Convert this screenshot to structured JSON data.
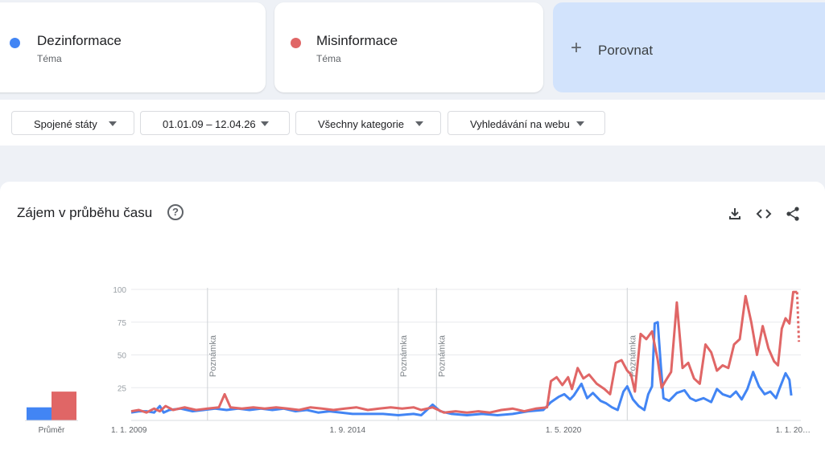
{
  "terms": [
    {
      "name": "Dezinformace",
      "type": "Téma",
      "color": "#4285f4"
    },
    {
      "name": "Misinformace",
      "type": "Téma",
      "color": "#e06666"
    }
  ],
  "compare": {
    "icon": "plus-icon",
    "label": "Porovnat"
  },
  "filters": {
    "region": "Spojené státy",
    "date_range": "01.01.09 – 12.04.26",
    "category": "Všechny kategorie",
    "search_type": "Vyhledávání na webu"
  },
  "chart_section": {
    "title": "Zájem v průběhu času",
    "icons": [
      "help-icon",
      "download-icon",
      "embed-code-icon",
      "share-icon"
    ]
  },
  "chart_data": {
    "type": "line",
    "ylim": [
      0,
      100
    ],
    "yticks": [
      "100",
      "75",
      "50",
      "25"
    ],
    "xticks": [
      {
        "label": "1. 1. 2009",
        "year": 2009.0
      },
      {
        "label": "1. 9. 2014",
        "year": 2014.67
      },
      {
        "label": "1. 5. 2020",
        "year": 2020.33
      },
      {
        "label": "1. 1. 20…",
        "year": 2026.0
      }
    ],
    "annotations": [
      {
        "label": "Poznámka",
        "year": 2011.0
      },
      {
        "label": "Poznámka",
        "year": 2016.0
      },
      {
        "label": "Poznámka",
        "year": 2017.0
      },
      {
        "label": "Poznámka",
        "year": 2022.0
      }
    ],
    "average_label": "Průměr",
    "averages": [
      {
        "name": "Dezinformace",
        "value": 10
      },
      {
        "name": "Misinformace",
        "value": 22
      }
    ],
    "series": [
      {
        "name": "Dezinformace",
        "color": "#4285f4",
        "points": [
          [
            2009.0,
            6
          ],
          [
            2009.2,
            7
          ],
          [
            2009.4,
            7
          ],
          [
            2009.6,
            6
          ],
          [
            2009.75,
            11
          ],
          [
            2009.85,
            6
          ],
          [
            2010.0,
            8
          ],
          [
            2010.3,
            9
          ],
          [
            2010.6,
            7
          ],
          [
            2010.9,
            8
          ],
          [
            2011.2,
            9
          ],
          [
            2011.5,
            8
          ],
          [
            2011.8,
            9
          ],
          [
            2012.1,
            8
          ],
          [
            2012.4,
            9
          ],
          [
            2012.7,
            8
          ],
          [
            2013.0,
            9
          ],
          [
            2013.3,
            7
          ],
          [
            2013.6,
            8
          ],
          [
            2013.9,
            6
          ],
          [
            2014.2,
            7
          ],
          [
            2014.5,
            6
          ],
          [
            2014.8,
            5
          ],
          [
            2015.2,
            5
          ],
          [
            2015.6,
            5
          ],
          [
            2016.0,
            4
          ],
          [
            2016.4,
            5
          ],
          [
            2016.6,
            4
          ],
          [
            2016.9,
            12
          ],
          [
            2017.1,
            7
          ],
          [
            2017.4,
            5
          ],
          [
            2017.8,
            4
          ],
          [
            2018.2,
            5
          ],
          [
            2018.6,
            4
          ],
          [
            2019.0,
            5
          ],
          [
            2019.4,
            7
          ],
          [
            2019.8,
            8
          ],
          [
            2020.0,
            14
          ],
          [
            2020.2,
            18
          ],
          [
            2020.35,
            20
          ],
          [
            2020.5,
            16
          ],
          [
            2020.6,
            19
          ],
          [
            2020.8,
            28
          ],
          [
            2020.95,
            17
          ],
          [
            2021.1,
            21
          ],
          [
            2021.3,
            15
          ],
          [
            2021.45,
            13
          ],
          [
            2021.6,
            10
          ],
          [
            2021.75,
            8
          ],
          [
            2021.9,
            22
          ],
          [
            2022.0,
            26
          ],
          [
            2022.15,
            16
          ],
          [
            2022.3,
            11
          ],
          [
            2022.45,
            8
          ],
          [
            2022.55,
            20
          ],
          [
            2022.65,
            26
          ],
          [
            2022.72,
            74
          ],
          [
            2022.8,
            75
          ],
          [
            2022.88,
            42
          ],
          [
            2022.95,
            17
          ],
          [
            2023.1,
            15
          ],
          [
            2023.3,
            21
          ],
          [
            2023.5,
            23
          ],
          [
            2023.65,
            17
          ],
          [
            2023.8,
            15
          ],
          [
            2024.0,
            17
          ],
          [
            2024.2,
            14
          ],
          [
            2024.35,
            24
          ],
          [
            2024.5,
            20
          ],
          [
            2024.7,
            18
          ],
          [
            2024.85,
            22
          ],
          [
            2025.0,
            16
          ],
          [
            2025.15,
            24
          ],
          [
            2025.3,
            37
          ],
          [
            2025.45,
            26
          ],
          [
            2025.6,
            20
          ],
          [
            2025.75,
            22
          ],
          [
            2025.9,
            17
          ],
          [
            2026.0,
            25
          ],
          [
            2026.15,
            36
          ],
          [
            2026.25,
            31
          ],
          [
            2026.3,
            19
          ]
        ]
      },
      {
        "name": "Misinformace",
        "color": "#e06666",
        "points": [
          [
            2009.0,
            7
          ],
          [
            2009.2,
            8
          ],
          [
            2009.4,
            6
          ],
          [
            2009.6,
            9
          ],
          [
            2009.75,
            7
          ],
          [
            2009.9,
            11
          ],
          [
            2010.1,
            8
          ],
          [
            2010.4,
            10
          ],
          [
            2010.7,
            8
          ],
          [
            2011.0,
            9
          ],
          [
            2011.3,
            10
          ],
          [
            2011.45,
            20
          ],
          [
            2011.6,
            10
          ],
          [
            2011.9,
            9
          ],
          [
            2012.2,
            10
          ],
          [
            2012.5,
            9
          ],
          [
            2012.8,
            10
          ],
          [
            2013.1,
            9
          ],
          [
            2013.4,
            8
          ],
          [
            2013.7,
            10
          ],
          [
            2014.0,
            9
          ],
          [
            2014.3,
            8
          ],
          [
            2014.6,
            9
          ],
          [
            2014.9,
            10
          ],
          [
            2015.2,
            8
          ],
          [
            2015.5,
            9
          ],
          [
            2015.8,
            10
          ],
          [
            2016.1,
            9
          ],
          [
            2016.4,
            10
          ],
          [
            2016.6,
            8
          ],
          [
            2016.9,
            10
          ],
          [
            2017.2,
            6
          ],
          [
            2017.5,
            7
          ],
          [
            2017.8,
            6
          ],
          [
            2018.1,
            7
          ],
          [
            2018.4,
            6
          ],
          [
            2018.7,
            8
          ],
          [
            2019.0,
            9
          ],
          [
            2019.3,
            7
          ],
          [
            2019.6,
            9
          ],
          [
            2019.9,
            10
          ],
          [
            2020.0,
            30
          ],
          [
            2020.15,
            33
          ],
          [
            2020.3,
            27
          ],
          [
            2020.45,
            33
          ],
          [
            2020.55,
            24
          ],
          [
            2020.7,
            40
          ],
          [
            2020.85,
            32
          ],
          [
            2021.0,
            35
          ],
          [
            2021.2,
            28
          ],
          [
            2021.4,
            24
          ],
          [
            2021.55,
            20
          ],
          [
            2021.7,
            44
          ],
          [
            2021.85,
            46
          ],
          [
            2022.0,
            38
          ],
          [
            2022.1,
            35
          ],
          [
            2022.2,
            22
          ],
          [
            2022.35,
            66
          ],
          [
            2022.5,
            62
          ],
          [
            2022.65,
            68
          ],
          [
            2022.8,
            46
          ],
          [
            2022.9,
            25
          ],
          [
            2023.0,
            30
          ],
          [
            2023.15,
            37
          ],
          [
            2023.3,
            90
          ],
          [
            2023.45,
            40
          ],
          [
            2023.6,
            44
          ],
          [
            2023.75,
            32
          ],
          [
            2023.9,
            28
          ],
          [
            2024.05,
            58
          ],
          [
            2024.2,
            52
          ],
          [
            2024.35,
            38
          ],
          [
            2024.5,
            42
          ],
          [
            2024.65,
            40
          ],
          [
            2024.8,
            58
          ],
          [
            2024.95,
            62
          ],
          [
            2025.1,
            95
          ],
          [
            2025.25,
            75
          ],
          [
            2025.4,
            50
          ],
          [
            2025.55,
            72
          ],
          [
            2025.7,
            55
          ],
          [
            2025.85,
            45
          ],
          [
            2025.95,
            42
          ],
          [
            2026.05,
            70
          ],
          [
            2026.15,
            78
          ],
          [
            2026.25,
            74
          ],
          [
            2026.35,
            98
          ],
          [
            2026.45,
            98
          ]
        ]
      },
      {
        "name": "Misinformace",
        "color": "#e06666",
        "dashed": true,
        "points": [
          [
            2026.45,
            98
          ],
          [
            2026.5,
            60
          ]
        ]
      }
    ]
  }
}
